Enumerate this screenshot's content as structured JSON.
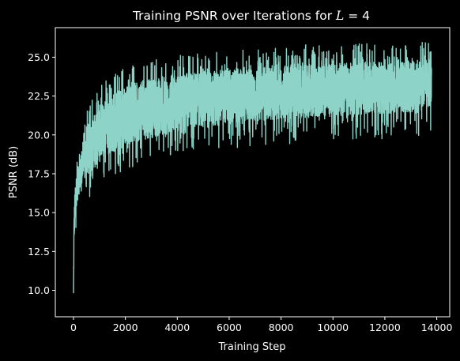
{
  "chart_data": {
    "type": "line",
    "title_main": "Training PSNR over Iterations for ",
    "title_var": "L",
    "title_eq": " = 4",
    "xlabel": "Training Step",
    "ylabel": "PSNR (dB)",
    "xlim": [
      -700,
      14500
    ],
    "ylim": [
      8.3,
      26.9
    ],
    "xticks": [
      0,
      2000,
      4000,
      6000,
      8000,
      10000,
      12000,
      14000
    ],
    "xtick_labels": [
      "0",
      "2000",
      "4000",
      "6000",
      "8000",
      "10000",
      "12000",
      "14000"
    ],
    "yticks": [
      10.0,
      12.5,
      15.0,
      17.5,
      20.0,
      22.5,
      25.0
    ],
    "ytick_labels": [
      "10.0",
      "12.5",
      "15.0",
      "17.5",
      "20.0",
      "22.5",
      "25.0"
    ],
    "grid": false,
    "line_color": "#8dd3c7",
    "background": "#000000",
    "axis_color": "#ffffff",
    "envelope": {
      "x": [
        0,
        20,
        50,
        100,
        200,
        300,
        500,
        700,
        1000,
        1500,
        2000,
        2500,
        3000,
        4000,
        5000,
        6000,
        7000,
        8000,
        9000,
        10000,
        11000,
        12000,
        13000,
        13800
      ],
      "upper": [
        10.2,
        15.0,
        16.3,
        17.2,
        18.2,
        19.0,
        20.2,
        21.1,
        21.9,
        22.7,
        23.2,
        23.4,
        23.6,
        23.9,
        24.1,
        24.3,
        24.4,
        24.5,
        24.6,
        24.6,
        24.7,
        24.7,
        24.8,
        24.8
      ],
      "lower": [
        9.1,
        12.5,
        14.3,
        15.3,
        16.1,
        16.6,
        17.2,
        17.7,
        18.2,
        18.8,
        19.3,
        19.6,
        19.8,
        20.2,
        20.5,
        20.7,
        20.9,
        21.0,
        21.1,
        21.2,
        21.3,
        21.3,
        21.4,
        21.4
      ],
      "peak_max": 26.2,
      "trough_min": 17.3
    }
  }
}
